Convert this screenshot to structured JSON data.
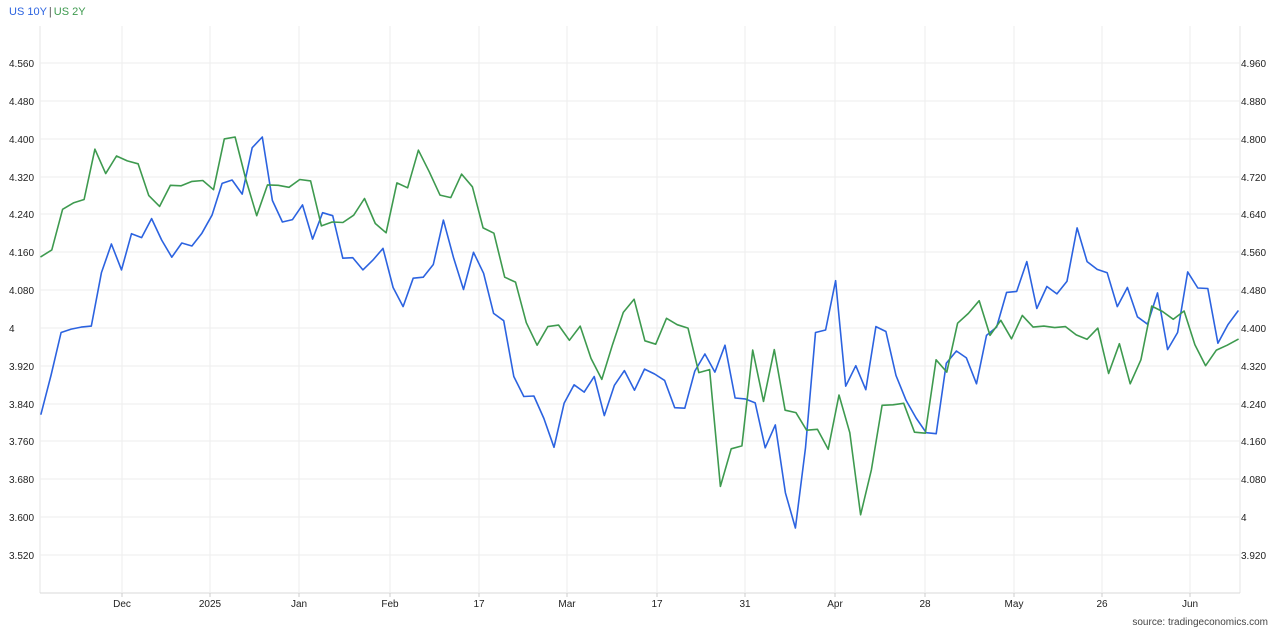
{
  "chart_data": {
    "type": "line",
    "grid": true,
    "legend_position": "top-left",
    "source": "source: tradingeconomics.com",
    "x_labels": [
      "Dec",
      "2025",
      "Jan",
      "Feb",
      "17",
      "Mar",
      "17",
      "31",
      "Apr",
      "28",
      "May",
      "26",
      "Jun"
    ],
    "y_left": {
      "ticks": [
        "3.520",
        "3.600",
        "3.680",
        "3.760",
        "3.840",
        "3.920",
        "4",
        "4.080",
        "4.160",
        "4.240",
        "4.320",
        "4.400",
        "4.480",
        "4.560"
      ],
      "range": [
        3.46,
        4.62
      ]
    },
    "y_right": {
      "ticks": [
        "3.920",
        "4",
        "4.080",
        "4.160",
        "4.240",
        "4.320",
        "4.400",
        "4.480",
        "4.560",
        "4.640",
        "4.720",
        "4.800",
        "4.880",
        "4.960"
      ],
      "range": [
        3.86,
        5.02
      ]
    },
    "series": [
      {
        "name": "US 10Y",
        "axis": "left",
        "color": "#2c63e0",
        "values": [
          3.826,
          3.906,
          3.993,
          4.0,
          4.004,
          4.006,
          4.115,
          4.174,
          4.121,
          4.195,
          4.187,
          4.226,
          4.182,
          4.147,
          4.176,
          4.17,
          4.196,
          4.233,
          4.298,
          4.305,
          4.276,
          4.371,
          4.393,
          4.263,
          4.219,
          4.224,
          4.254,
          4.184,
          4.238,
          4.232,
          4.145,
          4.146,
          4.121,
          4.141,
          4.165,
          4.085,
          4.046,
          4.104,
          4.106,
          4.132,
          4.223,
          4.147,
          4.081,
          4.157,
          4.114,
          4.032,
          4.017,
          3.903,
          3.862,
          3.863,
          3.817,
          3.758,
          3.848,
          3.886,
          3.871,
          3.903,
          3.823,
          3.885,
          3.915,
          3.875,
          3.918,
          3.908,
          3.895,
          3.839,
          3.838,
          3.914,
          3.949,
          3.912,
          3.967,
          3.859,
          3.857,
          3.849,
          3.757,
          3.804,
          3.665,
          3.593,
          3.757,
          3.993,
          3.998,
          4.099,
          3.883,
          3.925,
          3.876,
          4.005,
          3.995,
          3.905,
          3.854,
          3.818,
          3.788,
          3.786,
          3.93,
          3.955,
          3.941,
          3.888,
          3.987,
          4.004,
          4.075,
          4.077,
          4.138,
          4.042,
          4.087,
          4.072,
          4.098,
          4.207,
          4.138,
          4.122,
          4.115,
          4.046,
          4.085,
          4.025,
          4.01,
          4.074,
          3.958,
          3.993,
          4.117,
          4.084,
          4.083,
          3.971,
          4.009,
          4.037
        ]
      },
      {
        "name": "US 2Y",
        "axis": "right",
        "color": "#3e9a4f",
        "values": [
          4.548,
          4.562,
          4.645,
          4.658,
          4.665,
          4.768,
          4.718,
          4.754,
          4.744,
          4.738,
          4.673,
          4.651,
          4.694,
          4.693,
          4.702,
          4.704,
          4.685,
          4.789,
          4.793,
          4.706,
          4.632,
          4.695,
          4.694,
          4.69,
          4.706,
          4.703,
          4.611,
          4.619,
          4.618,
          4.633,
          4.667,
          4.616,
          4.597,
          4.699,
          4.689,
          4.766,
          4.722,
          4.674,
          4.669,
          4.717,
          4.691,
          4.607,
          4.596,
          4.506,
          4.496,
          4.413,
          4.367,
          4.405,
          4.408,
          4.377,
          4.406,
          4.34,
          4.297,
          4.368,
          4.434,
          4.461,
          4.376,
          4.369,
          4.422,
          4.409,
          4.402,
          4.311,
          4.317,
          4.078,
          4.155,
          4.161,
          4.357,
          4.252,
          4.358,
          4.234,
          4.229,
          4.193,
          4.195,
          4.154,
          4.265,
          4.188,
          4.02,
          4.112,
          4.244,
          4.245,
          4.248,
          4.189,
          4.187,
          4.337,
          4.312,
          4.412,
          4.432,
          4.458,
          4.387,
          4.418,
          4.38,
          4.428,
          4.404,
          4.406,
          4.403,
          4.405,
          4.388,
          4.379,
          4.402,
          4.309,
          4.37,
          4.288,
          4.337,
          4.447,
          4.436,
          4.42,
          4.437,
          4.368,
          4.325,
          4.357,
          4.367,
          4.379
        ]
      }
    ]
  }
}
